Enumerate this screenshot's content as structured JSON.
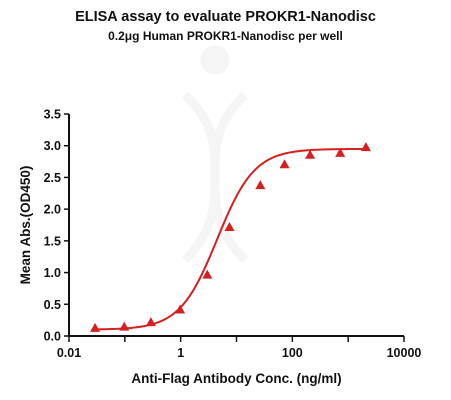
{
  "chart_data": {
    "type": "scatter",
    "title": "ELISA assay to evaluate PROKR1-Nanodisc",
    "subtitle": "0.2μg Human PROKR1-Nanodisc per well",
    "xlabel": "Anti-Flag Antibody Conc. (ng/ml)",
    "ylabel": "Mean Abs.(OD450)",
    "x_scale": "log",
    "xlim": [
      0.01,
      10000
    ],
    "ylim": [
      0.0,
      3.5
    ],
    "x_ticks": [
      "0.01",
      "1",
      "100",
      "10000"
    ],
    "y_ticks": [
      "0.0",
      "0.5",
      "1.0",
      "1.5",
      "2.0",
      "2.5",
      "3.0",
      "3.5"
    ],
    "grid": false,
    "colors": {
      "series": "#d62020",
      "axis": "#111111"
    },
    "series": [
      {
        "marker": "triangle",
        "fit": "4PL curve",
        "x": [
          0.0293,
          0.0977,
          0.293,
          0.977,
          3.0,
          7.5,
          26.7,
          72.5,
          208,
          720,
          2080
        ],
        "y": [
          0.12,
          0.14,
          0.21,
          0.41,
          0.96,
          1.71,
          2.37,
          2.7,
          2.85,
          2.88,
          2.97
        ]
      }
    ]
  }
}
